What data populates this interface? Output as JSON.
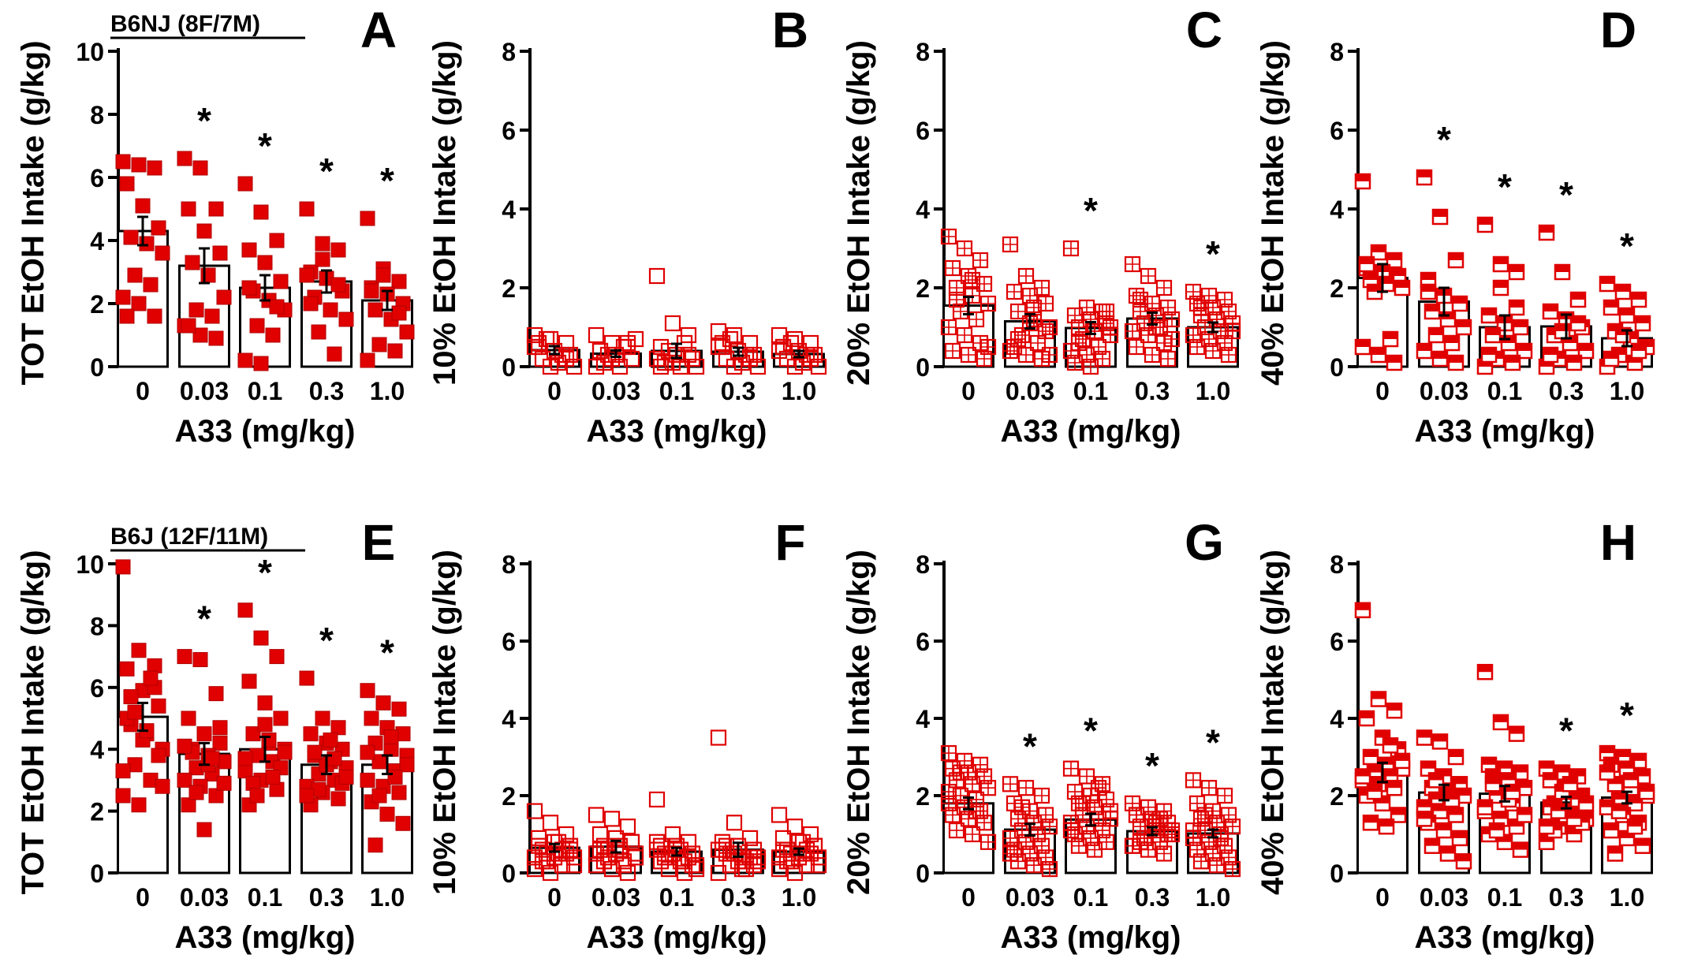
{
  "figure": {
    "x_tick_labels": [
      "0",
      "0.03",
      "0.1",
      "0.3",
      "1.0"
    ],
    "xlabel": "A33 (mg/kg)",
    "marker_color": "#e00000",
    "significance_marker": "*"
  },
  "chart_data": [
    {
      "type": "bar",
      "panel_letter": "A",
      "group_label": "B6NJ (8F/7M)",
      "ylabel": "TOT EtOH Intake (g/kg)",
      "categories": [
        "0",
        "0.03",
        "0.1",
        "0.3",
        "1.0"
      ],
      "ylim": [
        0,
        10
      ],
      "yticks": [
        "0",
        "2",
        "4",
        "6",
        "8",
        "10"
      ],
      "values": [
        4.3,
        3.2,
        2.5,
        2.7,
        2.1
      ],
      "sem": [
        0.45,
        0.55,
        0.4,
        0.35,
        0.3
      ],
      "significant": [
        false,
        true,
        true,
        true,
        true
      ],
      "marker_style": "filled",
      "points": [
        [
          6.5,
          6.4,
          6.3,
          5.8,
          5.1,
          4.4,
          4.1,
          3.9,
          3.6,
          2.9,
          2.6,
          2.2,
          2.0,
          1.6,
          1.6
        ],
        [
          6.6,
          6.3,
          5.0,
          5.0,
          4.3,
          3.6,
          3.3,
          2.9,
          2.2,
          1.8,
          1.6,
          1.3,
          1.0,
          0.9,
          1.3
        ],
        [
          5.8,
          4.9,
          4.0,
          3.7,
          3.3,
          2.7,
          2.4,
          2.1,
          1.8,
          1.3,
          1.0,
          0.2,
          0.1,
          1.9,
          2.5
        ],
        [
          5.0,
          3.9,
          3.7,
          3.0,
          2.8,
          2.4,
          2.2,
          1.8,
          1.5,
          1.1,
          0.4,
          2.9,
          3.4,
          2.6,
          2.0
        ],
        [
          4.7,
          3.1,
          2.7,
          2.5,
          2.3,
          2.0,
          1.8,
          1.5,
          1.1,
          0.7,
          0.5,
          0.2,
          2.9,
          1.7,
          2.4
        ]
      ]
    },
    {
      "type": "bar",
      "panel_letter": "B",
      "ylabel": "10% EtOH Intake (g/kg)",
      "categories": [
        "0",
        "0.03",
        "0.1",
        "0.3",
        "1.0"
      ],
      "ylim": [
        0,
        8
      ],
      "yticks": [
        "0",
        "2",
        "4",
        "6",
        "8"
      ],
      "values": [
        0.42,
        0.33,
        0.4,
        0.38,
        0.32
      ],
      "sem": [
        0.1,
        0.08,
        0.18,
        0.1,
        0.08
      ],
      "significant": [
        false,
        false,
        false,
        false,
        false
      ],
      "marker_style": "open",
      "points": [
        [
          0.8,
          0.7,
          0.6,
          0.5,
          0.4,
          0.3,
          0.2,
          0.1,
          0.0,
          0.7,
          0.3,
          0.5,
          0.0,
          0.2,
          0.6
        ],
        [
          0.8,
          0.6,
          0.5,
          0.4,
          0.3,
          0.2,
          0.1,
          0.0,
          0.7,
          0.3,
          0.5,
          0.0,
          0.2,
          0.6,
          0.4
        ],
        [
          2.3,
          1.1,
          0.8,
          0.5,
          0.3,
          0.2,
          0.1,
          0.0,
          0.0,
          0.4,
          0.6,
          0.2,
          0.1,
          0.3,
          0.0
        ],
        [
          0.9,
          0.8,
          0.6,
          0.5,
          0.4,
          0.3,
          0.2,
          0.1,
          0.0,
          0.7,
          0.3,
          0.5,
          0.0,
          0.2,
          0.6
        ],
        [
          0.8,
          0.7,
          0.6,
          0.5,
          0.4,
          0.3,
          0.2,
          0.1,
          0.0,
          0.6,
          0.3,
          0.4,
          0.0,
          0.2,
          0.5
        ]
      ]
    },
    {
      "type": "bar",
      "panel_letter": "C",
      "ylabel": "20% EtOH Intake (g/kg)",
      "categories": [
        "0",
        "0.03",
        "0.1",
        "0.3",
        "1.0"
      ],
      "ylim": [
        0,
        8
      ],
      "yticks": [
        "0",
        "2",
        "4",
        "6",
        "8"
      ],
      "values": [
        1.55,
        1.15,
        0.98,
        1.22,
        1.0
      ],
      "sem": [
        0.22,
        0.18,
        0.15,
        0.15,
        0.12
      ],
      "significant": [
        false,
        false,
        true,
        false,
        true
      ],
      "marker_style": "open",
      "points": [
        [
          3.3,
          3.0,
          2.7,
          2.5,
          2.3,
          2.1,
          2.0,
          1.8,
          1.6,
          1.4,
          1.2,
          1.0,
          0.8,
          0.6,
          0.4,
          0.3,
          0.2,
          1.7,
          2.2,
          0.5
        ],
        [
          3.1,
          2.3,
          2.0,
          1.9,
          1.8,
          1.6,
          1.4,
          1.2,
          1.0,
          0.8,
          0.6,
          0.4,
          0.3,
          0.2,
          0.5,
          1.1,
          0.9,
          0.7,
          1.5,
          0.3
        ],
        [
          3.0,
          1.5,
          1.4,
          1.3,
          1.2,
          1.1,
          1.0,
          0.9,
          0.8,
          0.7,
          0.5,
          0.4,
          0.3,
          0.2,
          0.1,
          0.0,
          1.4,
          0.6,
          0.9,
          1.0
        ],
        [
          2.6,
          2.3,
          2.0,
          1.8,
          1.6,
          1.5,
          1.4,
          1.3,
          1.2,
          1.1,
          1.0,
          0.9,
          0.8,
          0.6,
          0.5,
          0.3,
          0.2,
          1.7,
          1.0,
          0.7
        ],
        [
          1.9,
          1.8,
          1.7,
          1.6,
          1.5,
          1.4,
          1.3,
          1.2,
          1.1,
          1.0,
          0.9,
          0.8,
          0.7,
          0.6,
          0.5,
          0.4,
          0.3,
          1.5,
          1.2,
          0.9
        ]
      ]
    },
    {
      "type": "bar",
      "panel_letter": "D",
      "ylabel": "40% EtOH Intake (g/kg)",
      "categories": [
        "0",
        "0.03",
        "0.1",
        "0.3",
        "1.0"
      ],
      "ylim": [
        0,
        8
      ],
      "yticks": [
        "0",
        "2",
        "4",
        "6",
        "8"
      ],
      "values": [
        2.25,
        1.65,
        1.0,
        1.02,
        0.72
      ],
      "sem": [
        0.35,
        0.35,
        0.3,
        0.3,
        0.2
      ],
      "significant": [
        false,
        true,
        true,
        true,
        true
      ],
      "marker_style": "half",
      "points": [
        [
          4.7,
          2.9,
          2.7,
          2.5,
          2.4,
          2.3,
          2.2,
          2.1,
          2.0,
          1.9,
          0.7,
          0.5,
          0.3,
          0.1,
          2.6
        ],
        [
          4.8,
          3.8,
          2.7,
          2.2,
          1.8,
          1.6,
          1.4,
          1.2,
          1.0,
          0.8,
          0.6,
          0.4,
          0.2,
          0.1,
          1.9
        ],
        [
          3.6,
          2.6,
          2.4,
          1.3,
          1.1,
          1.0,
          0.8,
          0.6,
          0.4,
          0.2,
          0.1,
          0.0,
          2.0,
          1.5,
          0.3
        ],
        [
          3.4,
          2.4,
          1.7,
          1.4,
          1.2,
          1.0,
          0.8,
          0.6,
          0.4,
          0.2,
          0.1,
          0.0,
          0.9,
          1.1,
          0.3
        ],
        [
          2.1,
          1.9,
          1.7,
          1.5,
          1.3,
          1.1,
          0.9,
          0.7,
          0.5,
          0.3,
          0.1,
          0.0,
          0.8,
          0.4,
          0.2
        ]
      ]
    },
    {
      "type": "bar",
      "panel_letter": "E",
      "group_label": "B6J (12F/11M)",
      "ylabel": "TOT EtOH Intake (g/kg)",
      "categories": [
        "0",
        "0.03",
        "0.1",
        "0.3",
        "1.0"
      ],
      "ylim": [
        0,
        10
      ],
      "yticks": [
        "0",
        "2",
        "4",
        "6",
        "8",
        "10"
      ],
      "values": [
        5.05,
        3.85,
        4.0,
        3.5,
        3.5
      ],
      "sem": [
        0.45,
        0.35,
        0.4,
        0.3,
        0.3
      ],
      "significant": [
        false,
        true,
        true,
        true,
        true
      ],
      "marker_style": "filled",
      "points": [
        [
          9.9,
          7.2,
          6.7,
          6.6,
          5.9,
          5.4,
          4.8,
          4.5,
          4.0,
          3.5,
          3.0,
          2.5,
          2.2,
          6.0,
          5.0,
          4.3,
          3.8,
          5.7,
          4.6,
          2.8,
          5.2,
          6.3,
          3.3
        ],
        [
          7.0,
          6.9,
          5.8,
          5.0,
          4.5,
          4.2,
          4.0,
          3.8,
          3.6,
          3.4,
          3.2,
          3.0,
          2.8,
          2.5,
          2.2,
          1.4,
          4.7,
          3.9,
          3.5,
          2.9,
          2.6,
          3.7,
          4.1
        ],
        [
          8.5,
          7.6,
          7.0,
          6.2,
          5.5,
          5.0,
          4.5,
          4.2,
          4.0,
          3.8,
          3.6,
          3.3,
          3.0,
          2.7,
          2.2,
          4.8,
          3.4,
          2.9,
          4.3,
          3.9,
          2.5,
          3.1,
          3.7
        ],
        [
          6.3,
          5.0,
          4.7,
          4.5,
          4.2,
          4.0,
          3.8,
          3.6,
          3.4,
          3.2,
          3.0,
          2.8,
          2.6,
          2.4,
          2.2,
          3.5,
          2.9,
          3.9,
          4.3,
          3.1,
          2.7,
          3.7,
          2.5
        ],
        [
          5.9,
          5.5,
          5.3,
          5.0,
          4.7,
          4.5,
          4.2,
          4.0,
          3.8,
          3.6,
          3.3,
          3.0,
          2.8,
          2.6,
          2.3,
          1.9,
          1.6,
          0.9,
          4.4,
          3.5,
          2.5,
          3.1,
          3.9
        ]
      ]
    },
    {
      "type": "bar",
      "panel_letter": "F",
      "ylabel": "10% EtOH Intake (g/kg)",
      "categories": [
        "0",
        "0.03",
        "0.1",
        "0.3",
        "1.0"
      ],
      "ylim": [
        0,
        8
      ],
      "yticks": [
        "0",
        "2",
        "4",
        "6",
        "8"
      ],
      "values": [
        0.65,
        0.68,
        0.55,
        0.6,
        0.55
      ],
      "sem": [
        0.1,
        0.15,
        0.1,
        0.18,
        0.08
      ],
      "significant": [
        false,
        false,
        false,
        false,
        false
      ],
      "marker_style": "open",
      "points": [
        [
          1.6,
          1.3,
          1.0,
          0.9,
          0.8,
          0.7,
          0.6,
          0.5,
          0.4,
          0.3,
          0.2,
          0.1,
          0.0,
          0.5,
          0.7,
          0.4,
          0.6,
          0.3,
          0.8,
          0.2,
          0.5,
          0.6,
          0.4
        ],
        [
          1.5,
          1.4,
          1.2,
          1.0,
          0.9,
          0.8,
          0.7,
          0.6,
          0.5,
          0.4,
          0.3,
          0.2,
          0.1,
          0.0,
          0.6,
          0.5,
          0.8,
          0.3,
          0.7,
          0.4,
          0.6,
          0.2,
          0.5
        ],
        [
          1.9,
          1.0,
          0.8,
          0.7,
          0.6,
          0.5,
          0.4,
          0.3,
          0.2,
          0.1,
          0.0,
          0.6,
          0.5,
          0.4,
          0.3,
          0.7,
          0.2,
          0.5,
          0.6,
          0.1,
          0.4,
          0.3,
          0.8
        ],
        [
          3.5,
          1.3,
          0.9,
          0.8,
          0.7,
          0.6,
          0.5,
          0.4,
          0.3,
          0.2,
          0.1,
          0.0,
          0.5,
          0.4,
          0.6,
          0.3,
          0.2,
          0.7,
          0.1,
          0.4,
          0.5,
          0.3,
          0.6
        ],
        [
          1.5,
          1.2,
          1.0,
          0.9,
          0.8,
          0.7,
          0.6,
          0.5,
          0.4,
          0.3,
          0.2,
          0.1,
          0.0,
          0.5,
          0.6,
          0.4,
          0.7,
          0.3,
          0.8,
          0.2,
          0.5,
          0.6,
          0.4
        ]
      ]
    },
    {
      "type": "bar",
      "panel_letter": "G",
      "ylabel": "20% EtOH Intake (g/kg)",
      "categories": [
        "0",
        "0.03",
        "0.1",
        "0.3",
        "1.0"
      ],
      "ylim": [
        0,
        8
      ],
      "yticks": [
        "0",
        "2",
        "4",
        "6",
        "8"
      ],
      "values": [
        1.8,
        1.12,
        1.38,
        1.08,
        1.02
      ],
      "sem": [
        0.15,
        0.15,
        0.15,
        0.1,
        0.1
      ],
      "significant": [
        false,
        true,
        true,
        true,
        true
      ],
      "marker_style": "open",
      "points": [
        [
          3.1,
          2.9,
          2.8,
          2.7,
          2.6,
          2.5,
          2.4,
          2.3,
          2.2,
          2.0,
          1.9,
          1.8,
          1.7,
          1.6,
          1.5,
          1.4,
          1.3,
          1.1,
          1.0,
          0.8,
          2.6,
          1.6,
          2.1
        ],
        [
          2.3,
          2.2,
          2.0,
          1.8,
          1.6,
          1.5,
          1.4,
          1.3,
          1.2,
          1.1,
          1.0,
          0.9,
          0.8,
          0.7,
          0.6,
          0.5,
          0.4,
          0.3,
          0.2,
          0.1,
          1.7,
          1.0,
          0.5
        ],
        [
          2.7,
          2.5,
          2.3,
          2.1,
          2.0,
          1.9,
          1.8,
          1.7,
          1.6,
          1.5,
          1.4,
          1.3,
          1.2,
          1.1,
          1.0,
          0.9,
          0.8,
          0.7,
          0.6,
          1.4,
          1.8,
          2.2,
          1.1
        ],
        [
          1.8,
          1.7,
          1.6,
          1.5,
          1.4,
          1.3,
          1.2,
          1.1,
          1.0,
          0.9,
          0.8,
          0.7,
          0.6,
          0.5,
          1.5,
          1.2,
          1.0,
          0.8,
          1.3,
          1.1,
          0.9,
          1.4,
          0.7
        ],
        [
          2.4,
          2.2,
          2.0,
          1.8,
          1.6,
          1.5,
          1.4,
          1.3,
          1.2,
          1.1,
          1.0,
          0.9,
          0.8,
          0.7,
          0.6,
          0.5,
          0.4,
          0.3,
          0.2,
          0.1,
          1.5,
          0.9,
          1.1
        ]
      ]
    },
    {
      "type": "bar",
      "panel_letter": "H",
      "ylabel": "40% EtOH Intake (g/kg)",
      "categories": [
        "0",
        "0.03",
        "0.1",
        "0.3",
        "1.0"
      ],
      "ylim": [
        0,
        8
      ],
      "yticks": [
        "0",
        "2",
        "4",
        "6",
        "8"
      ],
      "values": [
        2.6,
        2.08,
        2.05,
        1.82,
        1.95
      ],
      "sem": [
        0.25,
        0.2,
        0.2,
        0.15,
        0.15
      ],
      "significant": [
        false,
        false,
        false,
        true,
        true
      ],
      "marker_style": "half",
      "points": [
        [
          6.8,
          4.5,
          4.2,
          4.0,
          3.5,
          3.2,
          3.0,
          2.8,
          2.7,
          2.6,
          2.5,
          2.4,
          2.3,
          2.2,
          2.0,
          1.8,
          1.5,
          1.3,
          1.2,
          2.9,
          2.1,
          3.3,
          2.5
        ],
        [
          3.5,
          3.4,
          3.0,
          2.7,
          2.5,
          2.3,
          2.2,
          2.1,
          2.0,
          1.9,
          1.8,
          1.7,
          1.6,
          1.5,
          1.3,
          1.1,
          0.9,
          0.7,
          0.5,
          0.3,
          2.4,
          1.9,
          1.4
        ],
        [
          5.2,
          3.9,
          3.6,
          2.8,
          2.7,
          2.6,
          2.5,
          2.4,
          2.2,
          2.0,
          1.8,
          1.6,
          1.4,
          1.2,
          1.0,
          0.8,
          0.6,
          2.3,
          1.9,
          1.5,
          1.1,
          2.1,
          1.7
        ],
        [
          2.7,
          2.6,
          2.5,
          2.4,
          2.2,
          2.0,
          1.8,
          1.6,
          1.4,
          1.2,
          1.0,
          0.8,
          2.1,
          1.9,
          1.7,
          1.5,
          1.3,
          1.1,
          2.3,
          1.8,
          1.6,
          1.4,
          1.2
        ],
        [
          3.1,
          3.0,
          2.9,
          2.8,
          2.7,
          2.5,
          2.3,
          2.2,
          2.0,
          1.9,
          1.8,
          1.7,
          1.5,
          1.3,
          1.1,
          0.9,
          0.7,
          0.5,
          2.4,
          2.1,
          1.6,
          1.2,
          2.6
        ]
      ]
    }
  ]
}
